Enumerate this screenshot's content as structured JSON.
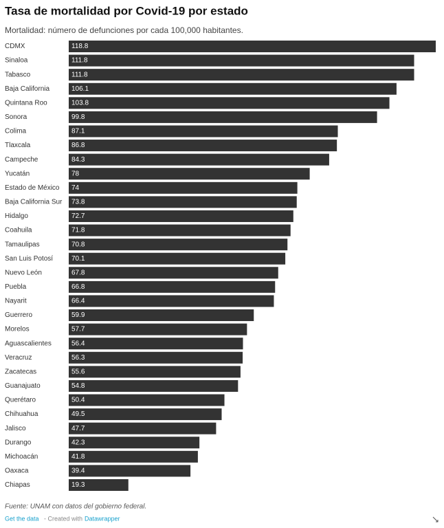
{
  "chart_data": {
    "type": "bar",
    "orientation": "horizontal",
    "title": "Tasa de mortalidad por Covid-19 por estado",
    "subtitle": "Mortalidad: número de defunciones por cada 100,000 habitantes.",
    "categories": [
      "CDMX",
      "Sinaloa",
      "Tabasco",
      "Baja California",
      "Quintana Roo",
      "Sonora",
      "Colima",
      "Tlaxcala",
      "Campeche",
      "Yucatán",
      "Estado de México",
      "Baja California Sur",
      "Hidalgo",
      "Coahuila",
      "Tamaulipas",
      "San Luis Potosí",
      "Nuevo León",
      "Puebla",
      "Nayarit",
      "Guerrero",
      "Morelos",
      "Aguascalientes",
      "Veracruz",
      "Zacatecas",
      "Guanajuato",
      "Querétaro",
      "Chihuahua",
      "Jalisco",
      "Durango",
      "Michoacán",
      "Oaxaca",
      "Chiapas"
    ],
    "values": [
      118.8,
      111.8,
      111.8,
      106.1,
      103.8,
      99.8,
      87.1,
      86.8,
      84.3,
      78,
      74,
      73.8,
      72.7,
      71.8,
      70.8,
      70.1,
      67.8,
      66.8,
      66.4,
      59.9,
      57.7,
      56.4,
      56.3,
      55.6,
      54.8,
      50.4,
      49.5,
      47.7,
      42.3,
      41.8,
      39.4,
      19.3
    ],
    "color": "#333333",
    "source": "Fuente: UNAM con datos del gobierno federal.",
    "get_data": "Get the data",
    "created_with": "- Created with",
    "credit": "Datawrapper"
  }
}
